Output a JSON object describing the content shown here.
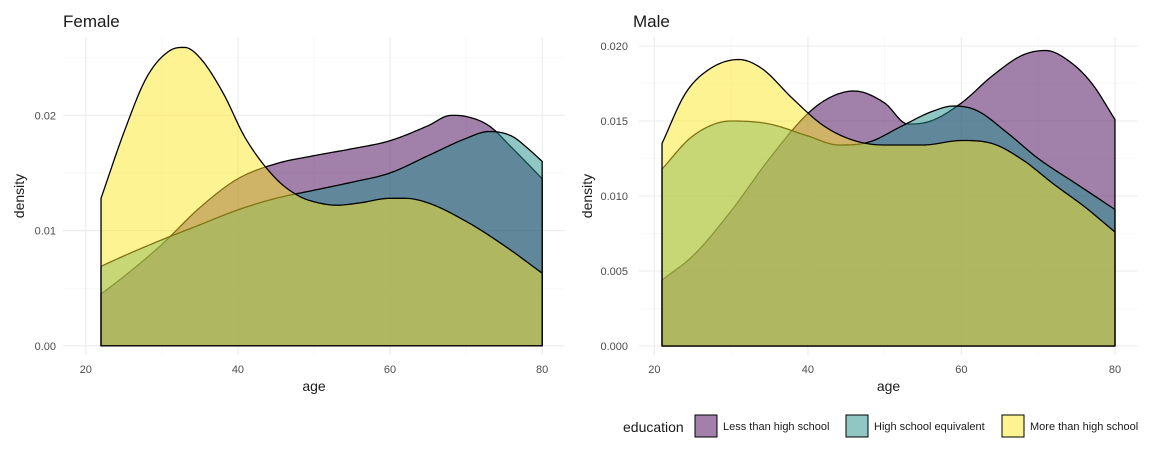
{
  "chart_data": [
    {
      "type": "area",
      "title": "Female",
      "xlabel": "age",
      "ylabel": "density",
      "xlim": [
        17,
        83
      ],
      "ylim": [
        -0.0008,
        0.0268
      ],
      "x_ticks": [
        20,
        40,
        60,
        80
      ],
      "x_tick_labels": [
        "20",
        "40",
        "60",
        "80"
      ],
      "y_ticks": [
        0,
        0.01,
        0.02
      ],
      "y_tick_labels": [
        "0.00",
        "0.01",
        "0.02"
      ],
      "series": [
        {
          "name": "Less than high school",
          "color": "#440154",
          "x": [
            22,
            25,
            30,
            35,
            40,
            45,
            50,
            55,
            60,
            65,
            68,
            70,
            73,
            76,
            80
          ],
          "y": [
            0.0045,
            0.006,
            0.0088,
            0.012,
            0.0145,
            0.0158,
            0.0165,
            0.0171,
            0.0178,
            0.0191,
            0.02,
            0.0199,
            0.0191,
            0.0172,
            0.0145
          ]
        },
        {
          "name": "High school equivalent",
          "color": "#21908C",
          "x": [
            22,
            25,
            30,
            35,
            40,
            45,
            50,
            55,
            60,
            65,
            70,
            73,
            76,
            78,
            80
          ],
          "y": [
            0.0069,
            0.0078,
            0.0092,
            0.0105,
            0.0118,
            0.0128,
            0.0135,
            0.0142,
            0.015,
            0.0165,
            0.018,
            0.0186,
            0.0182,
            0.0172,
            0.016
          ]
        },
        {
          "name": "More than high school",
          "color": "#FDE725",
          "x": [
            22,
            25,
            28,
            31,
            33,
            35,
            38,
            41,
            45,
            48,
            50,
            53,
            56,
            60,
            62,
            65,
            70,
            75,
            80
          ],
          "y": [
            0.0128,
            0.0185,
            0.0233,
            0.0256,
            0.0259,
            0.025,
            0.022,
            0.018,
            0.0145,
            0.013,
            0.0125,
            0.0122,
            0.0124,
            0.0128,
            0.0128,
            0.0124,
            0.0108,
            0.0087,
            0.0063
          ]
        }
      ],
      "legend": "bottom-right"
    },
    {
      "type": "area",
      "title": "Male",
      "xlabel": "age",
      "ylabel": "density",
      "xlim": [
        18,
        83
      ],
      "ylim": [
        -0.0006,
        0.0206
      ],
      "x_ticks": [
        20,
        40,
        60,
        80
      ],
      "x_tick_labels": [
        "20",
        "40",
        "60",
        "80"
      ],
      "y_ticks": [
        0,
        0.005,
        0.01,
        0.015,
        0.02
      ],
      "y_tick_labels": [
        "0.000",
        "0.005",
        "0.010",
        "0.015",
        "0.020"
      ],
      "series": [
        {
          "name": "Less than high school",
          "color": "#440154",
          "x": [
            21,
            25,
            30,
            35,
            40,
            43,
            46,
            50,
            53,
            56,
            60,
            64,
            68,
            71,
            74,
            77,
            80
          ],
          "y": [
            0.0044,
            0.006,
            0.009,
            0.0125,
            0.0155,
            0.0166,
            0.017,
            0.0162,
            0.0148,
            0.015,
            0.0162,
            0.018,
            0.0194,
            0.0197,
            0.019,
            0.0175,
            0.0151
          ]
        },
        {
          "name": "High school equivalent",
          "color": "#21908C",
          "x": [
            21,
            25,
            30,
            35,
            40,
            44,
            48,
            52,
            56,
            59,
            62,
            66,
            70,
            75,
            80
          ],
          "y": [
            0.0118,
            0.014,
            0.015,
            0.0148,
            0.014,
            0.0134,
            0.0136,
            0.0146,
            0.0156,
            0.016,
            0.0157,
            0.0142,
            0.0125,
            0.0108,
            0.0091
          ]
        },
        {
          "name": "More than high school",
          "color": "#FDE725",
          "x": [
            21,
            24,
            27,
            31,
            34,
            38,
            42,
            46,
            50,
            55,
            60,
            64,
            68,
            72,
            76,
            80
          ],
          "y": [
            0.0135,
            0.0168,
            0.0184,
            0.0191,
            0.0185,
            0.0165,
            0.0147,
            0.0137,
            0.0134,
            0.0134,
            0.0137,
            0.0135,
            0.0124,
            0.0108,
            0.0093,
            0.0076
          ]
        }
      ],
      "legend": "bottom-right"
    }
  ],
  "legend": {
    "title": "education",
    "items": [
      {
        "label": "Less than high school",
        "color": "#440154"
      },
      {
        "label": "High school equivalent",
        "color": "#21908C"
      },
      {
        "label": "More than high school",
        "color": "#FDE725"
      }
    ],
    "fill_opacity": 0.5
  },
  "colors": {
    "outline": "#000000",
    "grid": "#ebebeb",
    "background": "#ffffff"
  }
}
